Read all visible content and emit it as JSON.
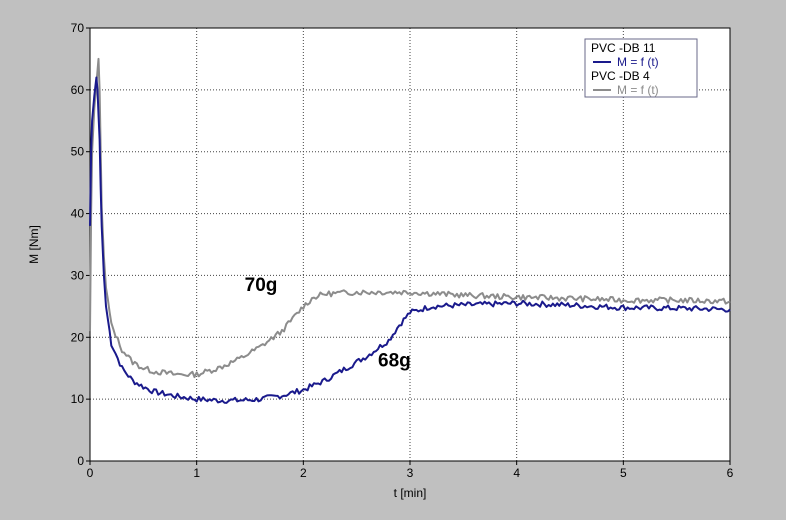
{
  "chart_data": {
    "type": "line",
    "xlabel": "t [min]",
    "ylabel": "M [Nm]",
    "xlim": [
      0,
      6
    ],
    "ylim": [
      0,
      70
    ],
    "xticks": [
      "0",
      "1",
      "2",
      "3",
      "4",
      "5",
      "6"
    ],
    "yticks": [
      "0",
      "10",
      "20",
      "30",
      "40",
      "50",
      "60",
      "70"
    ],
    "grid": true,
    "legend_position": "top-right",
    "legend": [
      {
        "title": "PVC -DB 11",
        "label": "M = f (t)",
        "color": "#1a1a8c"
      },
      {
        "title": "PVC -DB 4",
        "label": "M = f (t)",
        "color": "#8c8c8c"
      }
    ],
    "annotations": [
      {
        "text": "70g",
        "x": 1.45,
        "y": 27.5
      },
      {
        "text": "68g",
        "x": 2.7,
        "y": 15.3
      }
    ],
    "series": [
      {
        "name": "PVC -DB 11",
        "color": "#1a1a8c",
        "x": [
          0,
          0.01,
          0.02,
          0.04,
          0.06,
          0.07,
          0.08,
          0.09,
          0.1,
          0.11,
          0.13,
          0.15,
          0.2,
          0.3,
          0.4,
          0.5,
          0.6,
          0.8,
          1.0,
          1.2,
          1.4,
          1.6,
          1.8,
          2.0,
          2.2,
          2.4,
          2.6,
          2.8,
          2.9,
          3.0,
          3.2,
          3.5,
          4.0,
          4.5,
          5.0,
          5.5,
          6.0
        ],
        "y": [
          38,
          50,
          55,
          59,
          62,
          60,
          56,
          52,
          44,
          38,
          30,
          25,
          19,
          15,
          13,
          12,
          11.2,
          10.5,
          10,
          9.8,
          9.8,
          10,
          10.6,
          11.5,
          13,
          15,
          17,
          19.5,
          22,
          24,
          25,
          25.2,
          25.5,
          25.2,
          24.8,
          24.7,
          24.5
        ]
      },
      {
        "name": "PVC -DB 4",
        "color": "#8c8c8c",
        "x": [
          0,
          0.01,
          0.02,
          0.04,
          0.06,
          0.08,
          0.09,
          0.1,
          0.11,
          0.13,
          0.15,
          0.2,
          0.3,
          0.4,
          0.5,
          0.6,
          0.8,
          1.0,
          1.2,
          1.4,
          1.6,
          1.8,
          1.9,
          2.0,
          2.1,
          2.2,
          2.5,
          3.0,
          3.5,
          4.0,
          4.5,
          5.0,
          5.5,
          6.0
        ],
        "y": [
          21,
          40,
          50,
          57,
          61,
          65,
          60,
          50,
          41,
          33,
          28,
          22,
          18,
          16,
          15,
          14.5,
          14,
          14,
          15,
          16.5,
          18.5,
          21,
          23,
          25,
          26.5,
          27,
          27.3,
          27.3,
          26.8,
          26.5,
          26.3,
          26,
          26,
          25.8
        ]
      }
    ]
  }
}
